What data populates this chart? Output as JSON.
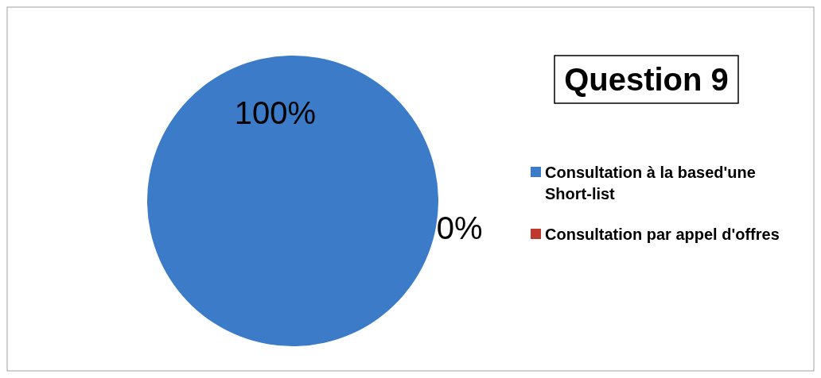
{
  "chart_data": {
    "type": "pie",
    "title": "Question 9",
    "categories": [
      "Consultation à la based'une Short-list",
      "Consultation par appel d'offres"
    ],
    "values": [
      100,
      0
    ],
    "colors": [
      "#3b7bc8",
      "#c0392f"
    ],
    "value_labels": [
      "100%",
      "0%"
    ],
    "legend": "right"
  }
}
